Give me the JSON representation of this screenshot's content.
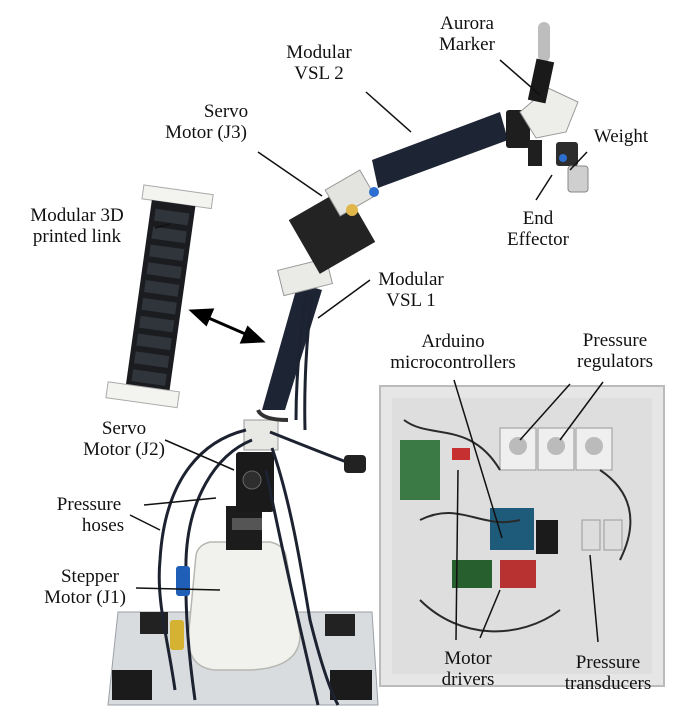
{
  "labels": {
    "aurora_marker": [
      "Aurora",
      "Marker"
    ],
    "modular_vsl_2": [
      "Modular",
      "VSL 2"
    ],
    "weight": [
      "Weight"
    ],
    "servo_j3": [
      "Servo",
      "Motor (J3)"
    ],
    "end_effector": [
      "End",
      "Effector"
    ],
    "modular_3d_link": [
      "Modular 3D",
      "printed link"
    ],
    "modular_vsl_1": [
      "Modular",
      "VSL 1"
    ],
    "arduino": [
      "Arduino",
      "microcontrollers"
    ],
    "pressure_regulators": [
      "Pressure",
      "regulators"
    ],
    "servo_j2": [
      "Servo",
      "Motor (J2)"
    ],
    "pressure_hoses": [
      "Pressure",
      "hoses"
    ],
    "stepper_j1": [
      "Stepper",
      "Motor (J1)"
    ],
    "motor_drivers": [
      "Motor",
      "drivers"
    ],
    "pressure_transducers": [
      "Pressure",
      "transducers"
    ]
  },
  "colors": {
    "hose": "#1c2230",
    "printed_plastic": "#eeeeea",
    "motor_black": "#1a1a1a",
    "enclosure_bg": "#e4e4e4",
    "leader_line": "#111111"
  }
}
